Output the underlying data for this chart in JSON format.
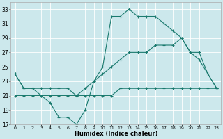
{
  "xlabel": "Humidex (Indice chaleur)",
  "bg_color": "#cce8ec",
  "line_color": "#1a7a6e",
  "grid_color": "#ffffff",
  "xlim": [
    -0.5,
    23.5
  ],
  "ylim": [
    17,
    34
  ],
  "xticks": [
    0,
    1,
    2,
    3,
    4,
    5,
    6,
    7,
    8,
    9,
    10,
    11,
    12,
    13,
    14,
    15,
    16,
    17,
    18,
    19,
    20,
    21,
    22,
    23
  ],
  "yticks": [
    17,
    19,
    21,
    23,
    25,
    27,
    29,
    31,
    33
  ],
  "line1_x": [
    0,
    1,
    2,
    3,
    4,
    5,
    6,
    7,
    8,
    9,
    10,
    11,
    12,
    13,
    14,
    15,
    16,
    17,
    18,
    19,
    20,
    21,
    22,
    23
  ],
  "line1_y": [
    24,
    22,
    22,
    21,
    20,
    18,
    18,
    17,
    19,
    23,
    25,
    32,
    32,
    33,
    32,
    32,
    32,
    31,
    30,
    29,
    27,
    26,
    24,
    22
  ],
  "line2_x": [
    0,
    1,
    2,
    3,
    4,
    5,
    6,
    7,
    8,
    9,
    10,
    11,
    12,
    13,
    14,
    15,
    16,
    17,
    18,
    19,
    20,
    21,
    22,
    23
  ],
  "line2_y": [
    24,
    22,
    22,
    22,
    22,
    22,
    22,
    21,
    22,
    23,
    24,
    25,
    26,
    27,
    27,
    27,
    28,
    28,
    28,
    29,
    27,
    27,
    24,
    22
  ],
  "line3_x": [
    0,
    1,
    2,
    3,
    4,
    5,
    6,
    7,
    8,
    9,
    10,
    11,
    12,
    13,
    14,
    15,
    16,
    17,
    18,
    19,
    20,
    21,
    22,
    23
  ],
  "line3_y": [
    21,
    21,
    21,
    21,
    21,
    21,
    21,
    21,
    21,
    21,
    21,
    21,
    22,
    22,
    22,
    22,
    22,
    22,
    22,
    22,
    22,
    22,
    22,
    22
  ]
}
